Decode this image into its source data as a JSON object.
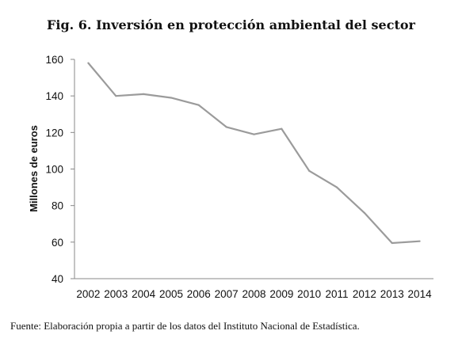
{
  "title": "Fig. 6. Inversión en protección ambiental del sector",
  "source": "Fuente: Elaboración propia a partir de los datos del Instituto Nacional de Estadística.",
  "colors": {
    "line": "#9b9b9b",
    "axis": "#888888"
  },
  "chart_data": {
    "type": "line",
    "title": "Fig. 6. Inversión en protección ambiental del sector",
    "xlabel": "",
    "ylabel": "Millones de euros",
    "x": [
      "2002",
      "2003",
      "2004",
      "2005",
      "2006",
      "2007",
      "2008",
      "2009",
      "2010",
      "2011",
      "2012",
      "2013",
      "2014"
    ],
    "series": [
      {
        "values": [
          158,
          140,
          141,
          139,
          135,
          123,
          119,
          122,
          99,
          90,
          76,
          59.5,
          60.5
        ]
      }
    ],
    "ylim": [
      40,
      160
    ],
    "yticks": [
      "40",
      "60",
      "80",
      "100",
      "120",
      "140",
      "160"
    ],
    "grid": false,
    "legend": "none"
  }
}
